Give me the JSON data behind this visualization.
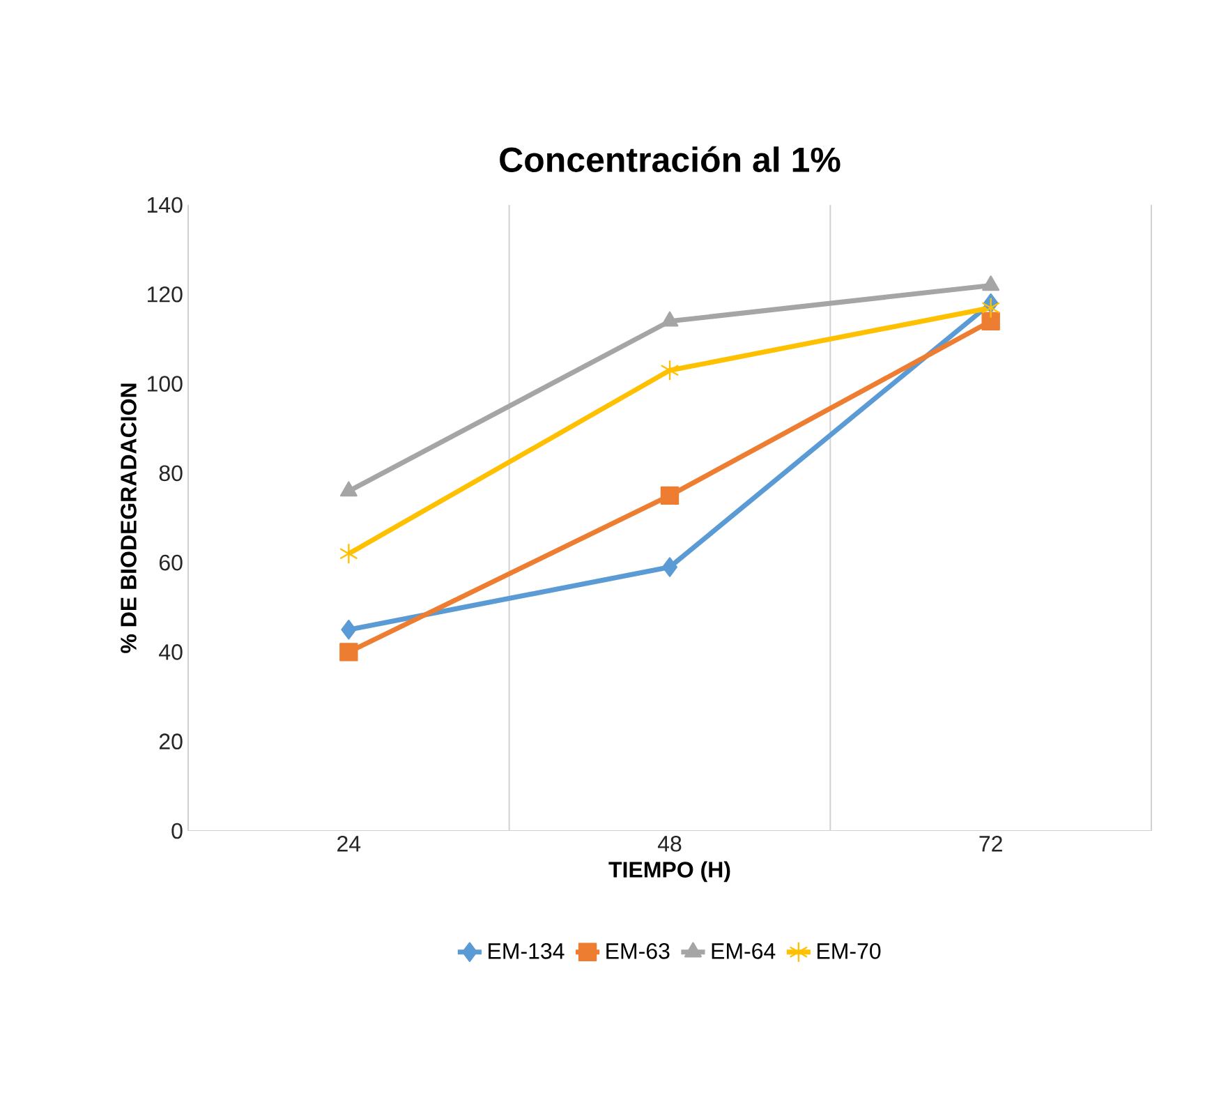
{
  "chart_data": {
    "type": "line",
    "title": "Concentración al  1%",
    "xlabel": "TIEMPO (H)",
    "ylabel": "% DE BIODEGRADACION",
    "categories": [
      "24",
      "48",
      "72"
    ],
    "series": [
      {
        "name": "EM-134",
        "color": "#5b9bd5",
        "marker": "diamond",
        "values": [
          45,
          59,
          118
        ]
      },
      {
        "name": "EM-63",
        "color": "#ed7d31",
        "marker": "square",
        "values": [
          40,
          75,
          114
        ]
      },
      {
        "name": "EM-64",
        "color": "#a5a5a5",
        "marker": "triangle",
        "values": [
          76,
          114,
          122
        ]
      },
      {
        "name": "EM-70",
        "color": "#ffc000",
        "marker": "cross",
        "values": [
          62,
          103,
          117
        ]
      }
    ],
    "ylim": [
      0,
      140
    ],
    "yticks": [
      0,
      20,
      40,
      60,
      80,
      100,
      120,
      140
    ],
    "grid": "x",
    "legend": "bottom",
    "line_style": "solid"
  }
}
